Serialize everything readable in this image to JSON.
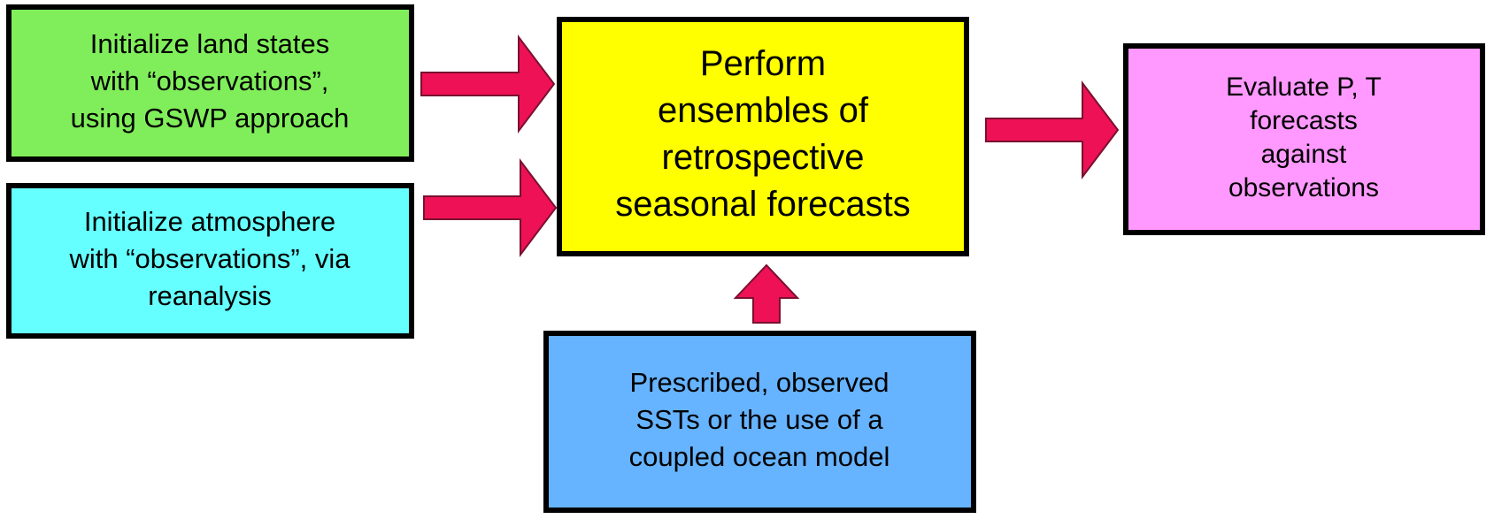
{
  "nodes": [
    {
      "lines": [
        "Initialize land states",
        "with “observations”,",
        "using GSWP approach"
      ]
    },
    {
      "lines": [
        "Initialize atmosphere",
        "with “observations”, via",
        "reanalysis"
      ]
    },
    {
      "lines": [
        "Perform",
        "ensembles of",
        "retrospective",
        "seasonal forecasts"
      ]
    },
    {
      "lines": [
        "Evaluate P, T",
        "forecasts",
        "against",
        "observations"
      ]
    },
    {
      "lines": [
        "Prescribed, observed",
        "SSTs or the use of a",
        "coupled ocean model"
      ]
    }
  ]
}
